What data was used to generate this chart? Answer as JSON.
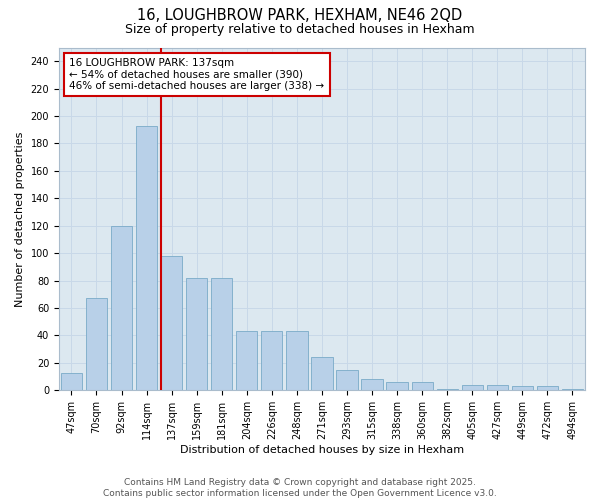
{
  "title_line1": "16, LOUGHBROW PARK, HEXHAM, NE46 2QD",
  "title_line2": "Size of property relative to detached houses in Hexham",
  "xlabel": "Distribution of detached houses by size in Hexham",
  "ylabel": "Number of detached properties",
  "categories": [
    "47sqm",
    "70sqm",
    "92sqm",
    "114sqm",
    "137sqm",
    "159sqm",
    "181sqm",
    "204sqm",
    "226sqm",
    "248sqm",
    "271sqm",
    "293sqm",
    "315sqm",
    "338sqm",
    "360sqm",
    "382sqm",
    "405sqm",
    "427sqm",
    "449sqm",
    "472sqm",
    "494sqm"
  ],
  "values": [
    13,
    67,
    120,
    193,
    98,
    82,
    82,
    43,
    43,
    43,
    24,
    15,
    8,
    6,
    6,
    1,
    4,
    4,
    3,
    3,
    1
  ],
  "bar_color": "#b8d0e8",
  "bar_edge_color": "#7aaac8",
  "grid_color": "#c8d8e8",
  "background_color": "#dce8f0",
  "vline_x_index": 4,
  "vline_color": "#cc0000",
  "annotation_text": "16 LOUGHBROW PARK: 137sqm\n← 54% of detached houses are smaller (390)\n46% of semi-detached houses are larger (338) →",
  "annotation_box_color": "#cc0000",
  "ylim": [
    0,
    250
  ],
  "yticks": [
    0,
    20,
    40,
    60,
    80,
    100,
    120,
    140,
    160,
    180,
    200,
    220,
    240
  ],
  "footer_text": "Contains HM Land Registry data © Crown copyright and database right 2025.\nContains public sector information licensed under the Open Government Licence v3.0.",
  "title_fontsize": 10.5,
  "subtitle_fontsize": 9,
  "axis_label_fontsize": 8,
  "tick_fontsize": 7,
  "annotation_fontsize": 7.5,
  "footer_fontsize": 6.5
}
